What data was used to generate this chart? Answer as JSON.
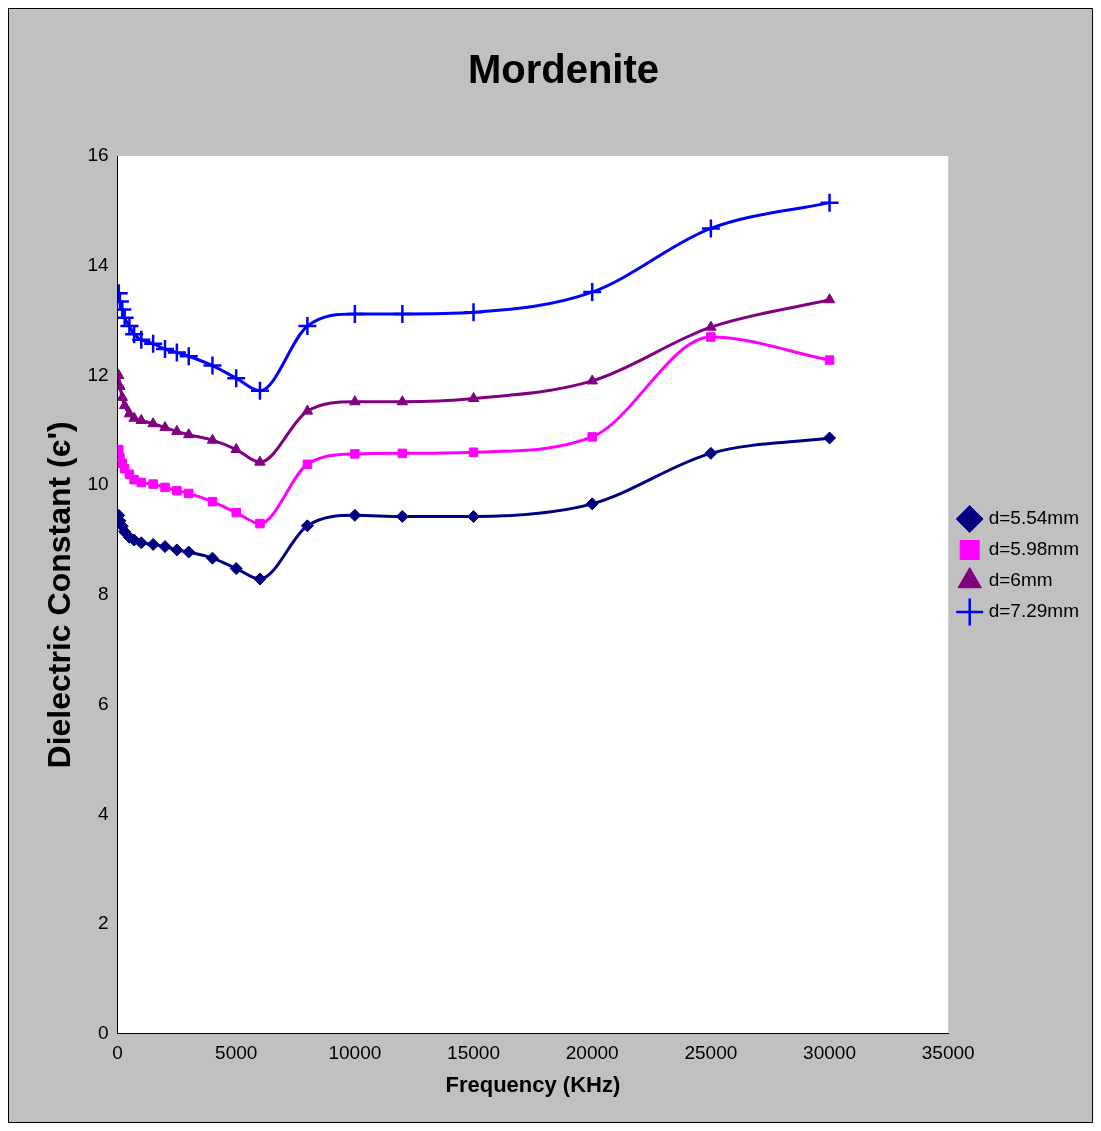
{
  "chart_data": {
    "type": "line",
    "title": "Mordenite",
    "xlabel": "Frequency (KHz)",
    "ylabel": "Dielectric Constant (є')",
    "x": [
      50,
      100,
      200,
      300,
      500,
      700,
      1000,
      1500,
      2000,
      2500,
      3000,
      4000,
      5000,
      6000,
      8000,
      10000,
      12000,
      15000,
      20000,
      25000,
      30000
    ],
    "xlim": [
      0,
      35000
    ],
    "xticks": [
      0,
      5000,
      10000,
      15000,
      20000,
      25000,
      30000,
      35000
    ],
    "ylim": [
      0,
      16
    ],
    "yticks": [
      0,
      2,
      4,
      6,
      8,
      10,
      12,
      14,
      16
    ],
    "grid": false,
    "legend": "right",
    "series": [
      {
        "name": "d=5.54mm",
        "color": "#000080",
        "marker": "diamond",
        "values": [
          9.45,
          9.35,
          9.25,
          9.15,
          9.05,
          9.0,
          8.95,
          8.92,
          8.88,
          8.82,
          8.78,
          8.67,
          8.48,
          8.29,
          9.26,
          9.45,
          9.43,
          9.43,
          9.66,
          10.58,
          10.86
        ]
      },
      {
        "name": "d=5.98mm",
        "color": "#ff00ff",
        "marker": "square",
        "values": [
          10.65,
          10.5,
          10.4,
          10.3,
          10.2,
          10.1,
          10.05,
          10.02,
          9.96,
          9.9,
          9.85,
          9.7,
          9.5,
          9.3,
          10.38,
          10.57,
          10.58,
          10.6,
          10.88,
          12.7,
          12.28
        ]
      },
      {
        "name": "d=6mm",
        "color": "#800080",
        "marker": "triangle",
        "values": [
          12.0,
          11.8,
          11.6,
          11.45,
          11.3,
          11.22,
          11.18,
          11.12,
          11.05,
          10.98,
          10.92,
          10.82,
          10.65,
          10.42,
          11.35,
          11.52,
          11.52,
          11.58,
          11.9,
          12.88,
          13.38
        ]
      },
      {
        "name": "d=7.29mm",
        "color": "#0000ff",
        "marker": "cross",
        "values": [
          13.5,
          13.35,
          13.2,
          13.05,
          12.9,
          12.75,
          12.65,
          12.58,
          12.48,
          12.42,
          12.35,
          12.18,
          11.95,
          11.72,
          12.9,
          13.12,
          13.12,
          13.15,
          13.52,
          14.68,
          15.15
        ]
      }
    ]
  }
}
